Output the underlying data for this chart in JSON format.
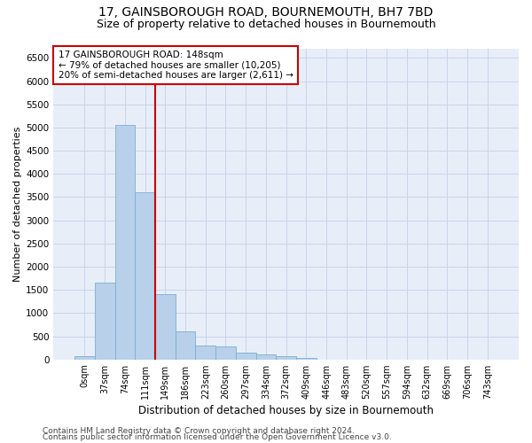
{
  "title": "17, GAINSBOROUGH ROAD, BOURNEMOUTH, BH7 7BD",
  "subtitle": "Size of property relative to detached houses in Bournemouth",
  "xlabel": "Distribution of detached houses by size in Bournemouth",
  "ylabel": "Number of detached properties",
  "footer1": "Contains HM Land Registry data © Crown copyright and database right 2024.",
  "footer2": "Contains public sector information licensed under the Open Government Licence v3.0.",
  "bar_labels": [
    "0sqm",
    "37sqm",
    "74sqm",
    "111sqm",
    "149sqm",
    "186sqm",
    "223sqm",
    "260sqm",
    "297sqm",
    "334sqm",
    "372sqm",
    "409sqm",
    "446sqm",
    "483sqm",
    "520sqm",
    "557sqm",
    "594sqm",
    "632sqm",
    "669sqm",
    "706sqm",
    "743sqm"
  ],
  "bar_values": [
    75,
    1650,
    5060,
    3600,
    1400,
    610,
    300,
    290,
    145,
    105,
    75,
    40,
    0,
    0,
    0,
    0,
    0,
    0,
    0,
    0,
    0
  ],
  "bar_color": "#b8d0ea",
  "bar_edge_color": "#7aafd4",
  "vline_color": "#cc0000",
  "vline_index": 4,
  "annotation_text": "17 GAINSBOROUGH ROAD: 148sqm\n← 79% of detached houses are smaller (10,205)\n20% of semi-detached houses are larger (2,611) →",
  "annotation_box_color": "#cc0000",
  "ylim": [
    0,
    6700
  ],
  "yticks": [
    0,
    500,
    1000,
    1500,
    2000,
    2500,
    3000,
    3500,
    4000,
    4500,
    5000,
    5500,
    6000,
    6500
  ],
  "grid_color": "#c8d4e8",
  "background_color": "#e8eef8",
  "title_fontsize": 10,
  "subtitle_fontsize": 9,
  "xlabel_fontsize": 8.5,
  "ylabel_fontsize": 8,
  "tick_fontsize": 7,
  "annotation_fontsize": 7.5,
  "footer_fontsize": 6.5
}
